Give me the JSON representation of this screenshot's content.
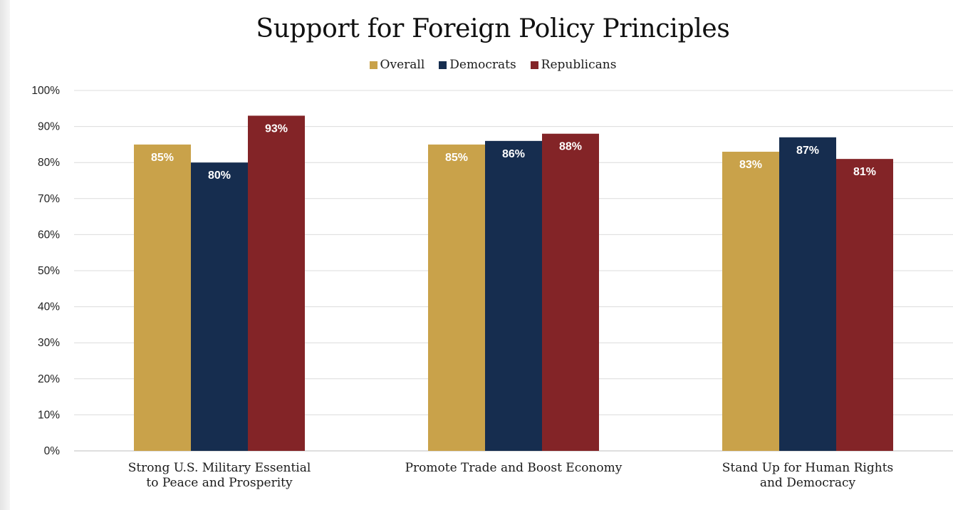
{
  "chart_data": {
    "type": "bar",
    "title": "Support for Foreign Policy Principles",
    "categories": [
      [
        "Strong U.S. Military Essential",
        "to Peace and Prosperity"
      ],
      [
        "Promote Trade and Boost Economy"
      ],
      [
        "Stand Up for Human Rights",
        "and Democracy"
      ]
    ],
    "series": [
      {
        "name": "Overall",
        "color": "#C9A24A",
        "values": [
          85,
          85,
          83
        ],
        "labels": [
          "85%",
          "85%",
          "83%"
        ]
      },
      {
        "name": "Democrats",
        "color": "#162D4F",
        "values": [
          80,
          86,
          87
        ],
        "labels": [
          "80%",
          "86%",
          "87%"
        ]
      },
      {
        "name": "Republicans",
        "color": "#832427",
        "values": [
          93,
          88,
          81
        ],
        "labels": [
          "93%",
          "88%",
          "81%"
        ]
      }
    ],
    "ylim": [
      0,
      100
    ],
    "yticks": [
      0,
      10,
      20,
      30,
      40,
      50,
      60,
      70,
      80,
      90,
      100
    ],
    "ytick_labels": [
      "0%",
      "10%",
      "20%",
      "30%",
      "40%",
      "50%",
      "60%",
      "70%",
      "80%",
      "90%",
      "100%"
    ],
    "xlabel": "",
    "ylabel": "",
    "grid": true,
    "legend_position": "top-center"
  }
}
